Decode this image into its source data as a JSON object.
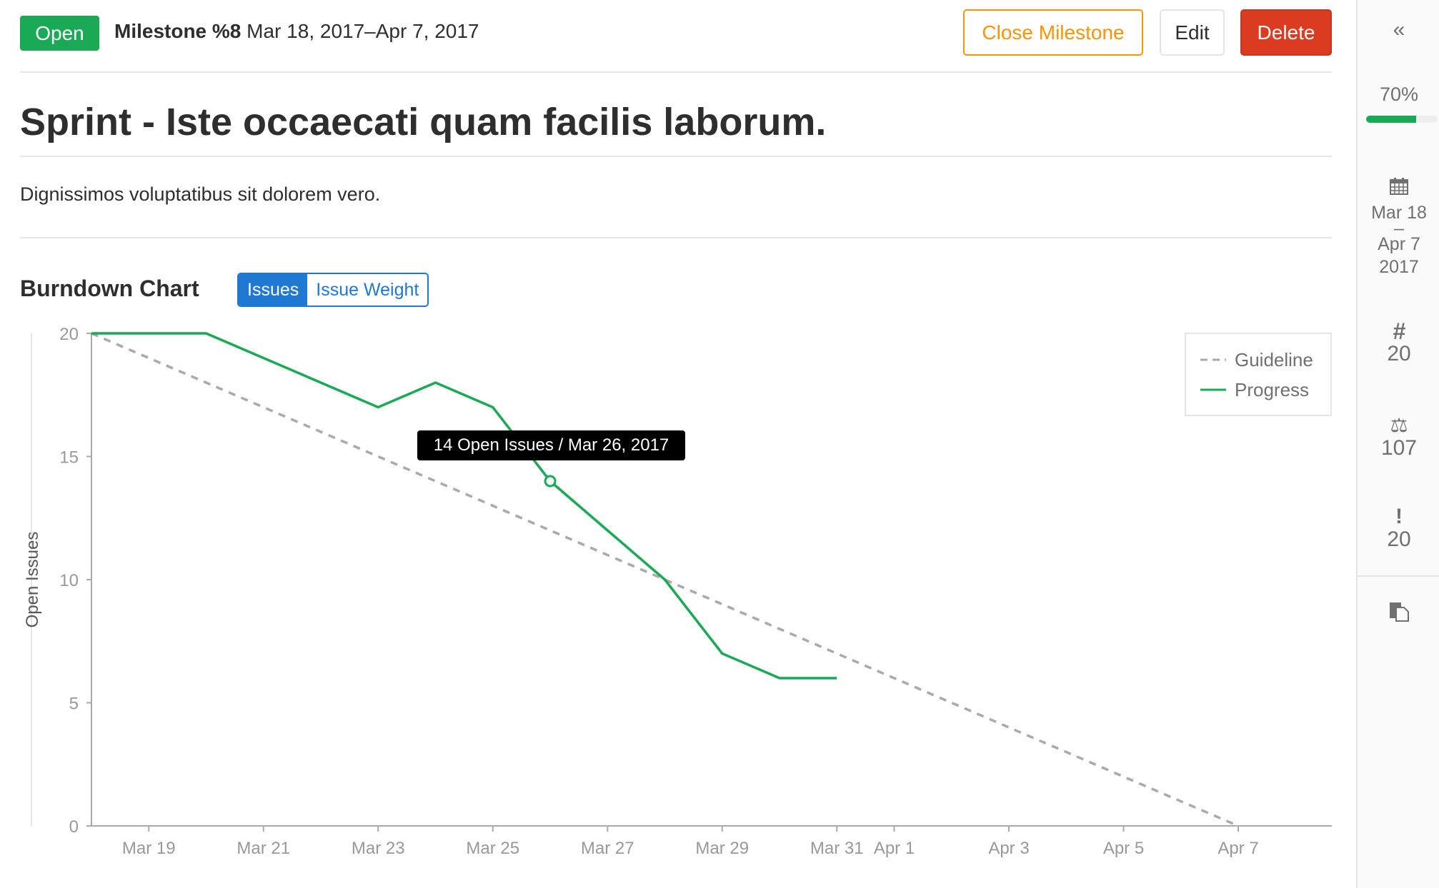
{
  "header": {
    "status": "Open",
    "milestone": "Milestone %8",
    "dates": "Mar 18, 2017–Apr 7, 2017",
    "close_label": "Close Milestone",
    "edit_label": "Edit",
    "delete_label": "Delete"
  },
  "title": "Sprint - Iste occaecati quam facilis laborum.",
  "description": "Dignissimos voluptatibus sit dolorem vero.",
  "burndown": {
    "heading": "Burndown Chart",
    "tabs": [
      "Issues",
      "Issue Weight"
    ],
    "active_tab": "Issues"
  },
  "tooltip": "14 Open Issues / Mar 26, 2017",
  "sidebar": {
    "progress_label": "70%",
    "progress": 0.7,
    "date_start": "Mar 18",
    "date_sep": "–",
    "date_end": "Apr 7",
    "date_year": "2017",
    "issues": "20",
    "weight": "107",
    "merge_requests": "20"
  },
  "colors": {
    "open": "#1aaa55",
    "close": "#fc9403",
    "delete": "#db3b21",
    "accent": "#1f78d1",
    "progress": "#1aaa55",
    "guideline": "#aaaaaa"
  },
  "chart_data": {
    "type": "line",
    "ylabel": "Open Issues",
    "ylim": [
      0,
      20
    ],
    "yticks": [
      "0",
      "5",
      "10",
      "15",
      "20"
    ],
    "xticks": [
      "Mar 19",
      "Mar 21",
      "Mar 23",
      "Mar 25",
      "Mar 27",
      "Mar 29",
      "Mar 31",
      "Apr 1",
      "Apr 3",
      "Apr 5",
      "Apr 7"
    ],
    "xtick_dates": [
      "2017-03-19",
      "2017-03-21",
      "2017-03-23",
      "2017-03-25",
      "2017-03-27",
      "2017-03-29",
      "2017-03-31",
      "2017-04-01",
      "2017-04-03",
      "2017-04-05",
      "2017-04-07"
    ],
    "legend": "top-right",
    "series": [
      {
        "name": "Guideline",
        "style": "dashed",
        "x": [
          "2017-03-18",
          "2017-04-07"
        ],
        "values": [
          20,
          0
        ]
      },
      {
        "name": "Progress",
        "style": "solid",
        "x": [
          "2017-03-18",
          "2017-03-19",
          "2017-03-20",
          "2017-03-21",
          "2017-03-22",
          "2017-03-23",
          "2017-03-24",
          "2017-03-25",
          "2017-03-26",
          "2017-03-27",
          "2017-03-28",
          "2017-03-29",
          "2017-03-30",
          "2017-03-31"
        ],
        "values": [
          20,
          20,
          20,
          19,
          18,
          17,
          18,
          17,
          14,
          12,
          10,
          7,
          6,
          6
        ]
      }
    ],
    "highlight": {
      "x": "2017-03-26",
      "value": 14
    }
  }
}
